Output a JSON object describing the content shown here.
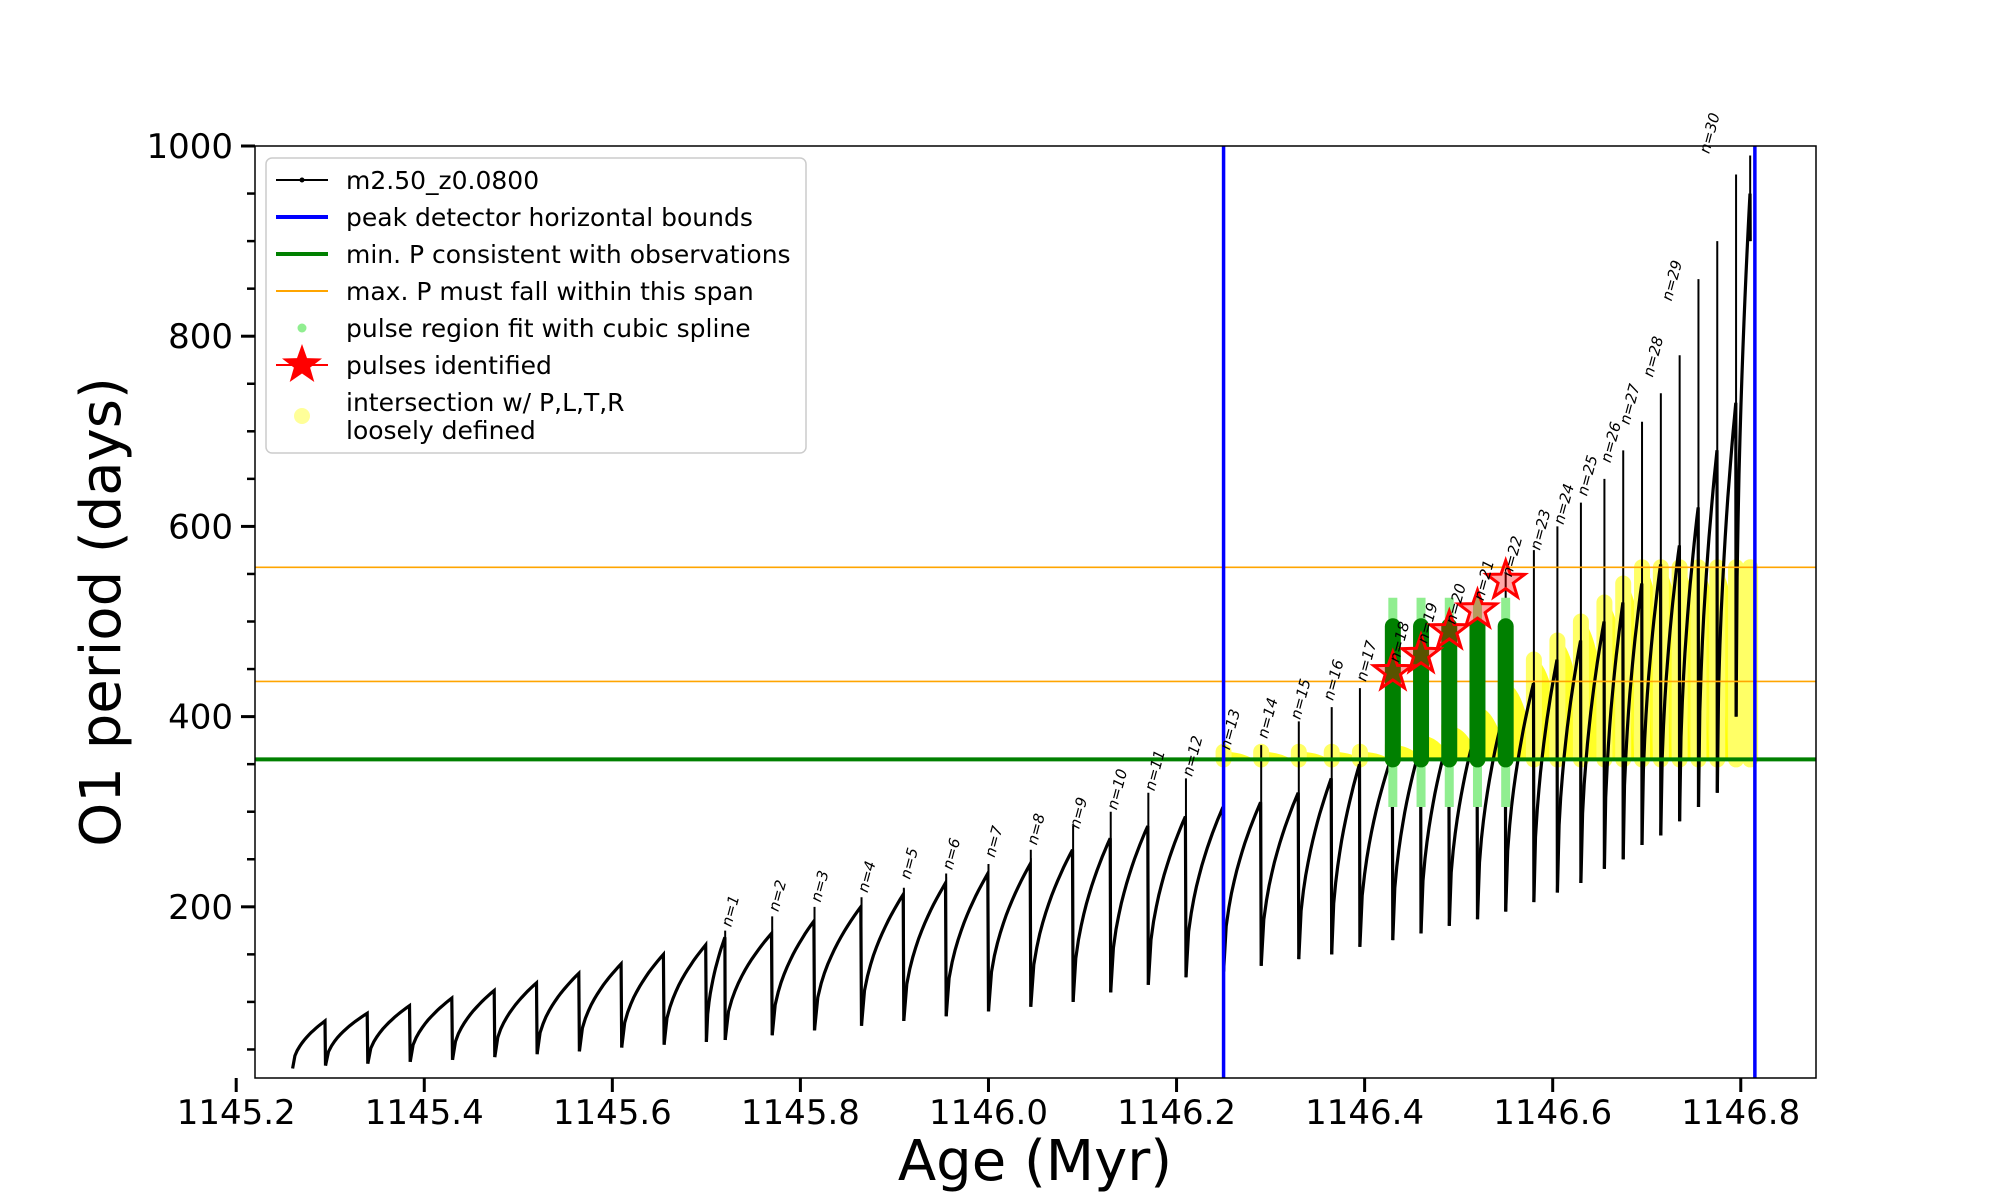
{
  "chart_data": {
    "type": "line",
    "xlabel": "Age (Myr)",
    "ylabel": "O1 period (days)",
    "xlim": [
      1145.22,
      1146.88
    ],
    "ylim": [
      20,
      1000
    ],
    "xticks": [
      1145.2,
      1145.4,
      1145.6,
      1145.8,
      1146.0,
      1146.2,
      1146.4,
      1146.6,
      1146.8
    ],
    "xtick_labels": [
      "1145.2",
      "1145.4",
      "1145.6",
      "1145.8",
      "1146.0",
      "1146.2",
      "1146.4",
      "1146.6",
      "1146.8"
    ],
    "yticks": [
      200,
      400,
      600,
      800,
      1000
    ],
    "ytick_labels": [
      "200",
      "400",
      "600",
      "800",
      "1000"
    ],
    "legend_position": "upper-left",
    "legend": [
      {
        "label": "m2.50_z0.0800",
        "kind": "line-marker",
        "color": "#000000"
      },
      {
        "label": "peak detector horizontal bounds",
        "kind": "line",
        "color": "#0000ff"
      },
      {
        "label": "min. P consistent with observations",
        "kind": "line",
        "color": "#008000"
      },
      {
        "label": "max. P must fall within this span",
        "kind": "thin-line",
        "color": "#ffa500"
      },
      {
        "label": "pulse region fit with cubic spline",
        "kind": "dot",
        "color": "#90ee90"
      },
      {
        "label": "pulses identified",
        "kind": "star",
        "color": "#ff0000"
      },
      {
        "label": "intersection w/ P,L,T,R\nloosely defined",
        "kind": "dot-large",
        "color": "#ffff99"
      }
    ],
    "series_track": {
      "name": "m2.50_z0.0800",
      "color": "#000000",
      "pulse_ages": [
        1145.26,
        1145.295,
        1145.34,
        1145.385,
        1145.43,
        1145.475,
        1145.52,
        1145.565,
        1145.61,
        1145.655,
        1145.7,
        1145.72,
        1145.77,
        1145.815,
        1145.865,
        1145.91,
        1145.955,
        1146.0,
        1146.045,
        1146.09,
        1146.13,
        1146.17,
        1146.21,
        1146.25,
        1146.29,
        1146.33,
        1146.365,
        1146.395,
        1146.43,
        1146.46,
        1146.49,
        1146.52,
        1146.55,
        1146.58,
        1146.605,
        1146.63,
        1146.655,
        1146.675,
        1146.695,
        1146.715,
        1146.735,
        1146.755,
        1146.775,
        1146.795,
        1146.81
      ],
      "pulse_min_period": [
        30,
        33,
        35,
        37,
        39,
        42,
        45,
        48,
        52,
        55,
        58,
        60,
        65,
        70,
        75,
        80,
        85,
        90,
        95,
        100,
        110,
        118,
        126,
        132,
        138,
        145,
        150,
        158,
        165,
        172,
        180,
        187,
        195,
        205,
        215,
        225,
        240,
        250,
        265,
        275,
        290,
        305,
        320,
        400,
        900
      ],
      "pulse_max_period": [
        80,
        88,
        96,
        104,
        112,
        120,
        130,
        140,
        150,
        160,
        168,
        172,
        185,
        200,
        213,
        225,
        235,
        245,
        260,
        272,
        285,
        295,
        305,
        310,
        320,
        335,
        350,
        360,
        370,
        380,
        390,
        410,
        435,
        460,
        480,
        500,
        520,
        540,
        560,
        580,
        620,
        680,
        730,
        950,
        1000
      ],
      "spike_peak_period": [
        null,
        null,
        null,
        null,
        null,
        null,
        null,
        null,
        null,
        null,
        null,
        175,
        190,
        200,
        210,
        220,
        235,
        245,
        260,
        285,
        300,
        320,
        335,
        355,
        370,
        395,
        410,
        430,
        460,
        480,
        500,
        520,
        550,
        575,
        600,
        625,
        650,
        680,
        710,
        740,
        780,
        860,
        900,
        970,
        990
      ]
    },
    "pulse_labels": [
      {
        "text": "n=1",
        "x": 1145.72,
        "y": 172
      },
      {
        "text": "n=2",
        "x": 1145.77,
        "y": 188
      },
      {
        "text": "n=3",
        "x": 1145.815,
        "y": 198
      },
      {
        "text": "n=4",
        "x": 1145.865,
        "y": 208
      },
      {
        "text": "n=5",
        "x": 1145.91,
        "y": 222
      },
      {
        "text": "n=6",
        "x": 1145.955,
        "y": 232
      },
      {
        "text": "n=7",
        "x": 1146.0,
        "y": 245
      },
      {
        "text": "n=8",
        "x": 1146.045,
        "y": 258
      },
      {
        "text": "n=9",
        "x": 1146.09,
        "y": 275
      },
      {
        "text": "n=10",
        "x": 1146.13,
        "y": 295
      },
      {
        "text": "n=11",
        "x": 1146.17,
        "y": 315
      },
      {
        "text": "n=12",
        "x": 1146.21,
        "y": 330
      },
      {
        "text": "n=13",
        "x": 1146.25,
        "y": 358
      },
      {
        "text": "n=14",
        "x": 1146.29,
        "y": 370
      },
      {
        "text": "n=15",
        "x": 1146.325,
        "y": 390
      },
      {
        "text": "n=16",
        "x": 1146.36,
        "y": 410
      },
      {
        "text": "n=17",
        "x": 1146.395,
        "y": 430
      },
      {
        "text": "n=18",
        "x": 1146.43,
        "y": 450
      },
      {
        "text": "n=19",
        "x": 1146.46,
        "y": 470
      },
      {
        "text": "n=20",
        "x": 1146.49,
        "y": 490
      },
      {
        "text": "n=21",
        "x": 1146.52,
        "y": 515
      },
      {
        "text": "n=22",
        "x": 1146.55,
        "y": 540
      },
      {
        "text": "n=23",
        "x": 1146.58,
        "y": 568
      },
      {
        "text": "n=24",
        "x": 1146.605,
        "y": 595
      },
      {
        "text": "n=25",
        "x": 1146.63,
        "y": 625
      },
      {
        "text": "n=26",
        "x": 1146.655,
        "y": 660
      },
      {
        "text": "n=27",
        "x": 1146.675,
        "y": 700
      },
      {
        "text": "n=28",
        "x": 1146.7,
        "y": 750
      },
      {
        "text": "n=29",
        "x": 1146.72,
        "y": 830
      },
      {
        "text": "n=30",
        "x": 1146.76,
        "y": 985
      }
    ],
    "vertical_bounds": {
      "color": "#0000ff",
      "x": [
        1146.25,
        1146.815
      ]
    },
    "min_period_line": {
      "color": "#008000",
      "y": 355
    },
    "max_period_span": {
      "color": "#ffa500",
      "y": [
        437,
        557
      ]
    },
    "pulses_identified": [
      {
        "x": 1146.43,
        "y": 447
      },
      {
        "x": 1146.46,
        "y": 465
      },
      {
        "x": 1146.49,
        "y": 490
      },
      {
        "x": 1146.52,
        "y": 512
      },
      {
        "x": 1146.55,
        "y": 543
      }
    ],
    "cubic_spline_regions": [
      {
        "x": 1146.43,
        "y_low": 355,
        "y_high": 495
      },
      {
        "x": 1146.46,
        "y_low": 355,
        "y_high": 495
      },
      {
        "x": 1146.49,
        "y_low": 355,
        "y_high": 495
      },
      {
        "x": 1146.52,
        "y_low": 355,
        "y_high": 495
      },
      {
        "x": 1146.55,
        "y_low": 355,
        "y_high": 495
      }
    ],
    "loosely_defined_region": {
      "x": [
        1146.25,
        1146.815
      ],
      "y": [
        355,
        557
      ]
    }
  }
}
